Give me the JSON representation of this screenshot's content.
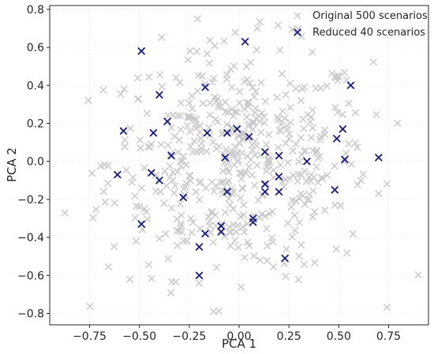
{
  "chart_data": {
    "type": "scatter",
    "title": "",
    "xlabel": "PCA 1",
    "ylabel": "PCA 2",
    "xlim": [
      -0.95,
      0.95
    ],
    "ylim": [
      -0.86,
      0.82
    ],
    "xticks": [
      -0.75,
      -0.5,
      -0.25,
      0.0,
      0.25,
      0.5,
      0.75
    ],
    "xtick_labels": [
      "−0.75",
      "−0.50",
      "−0.25",
      "0.00",
      "0.25",
      "0.50",
      "0.75"
    ],
    "yticks": [
      -0.8,
      -0.6,
      -0.4,
      -0.2,
      0.0,
      0.2,
      0.4,
      0.6,
      0.8
    ],
    "ytick_labels": [
      "−0.8",
      "−0.6",
      "−0.4",
      "−0.2",
      "0.0",
      "0.2",
      "0.4",
      "0.6",
      "0.8"
    ],
    "grid": true,
    "legend_position": "top-right",
    "series": [
      {
        "name": "Original 500 scenarios",
        "color": "#c8c8c8",
        "marker": "x",
        "points": []
      },
      {
        "name": "Reduced 40 scenarios",
        "color": "#1a1a7a",
        "marker": "x",
        "points": [
          [
            -0.49,
            0.58
          ],
          [
            0.03,
            0.63
          ],
          [
            -0.4,
            0.35
          ],
          [
            -0.17,
            0.39
          ],
          [
            0.56,
            0.4
          ],
          [
            -0.58,
            0.16
          ],
          [
            -0.43,
            0.15
          ],
          [
            -0.36,
            0.21
          ],
          [
            -0.16,
            0.15
          ],
          [
            -0.06,
            0.15
          ],
          [
            -0.01,
            0.17
          ],
          [
            0.05,
            0.13
          ],
          [
            -0.34,
            0.03
          ],
          [
            -0.07,
            0.02
          ],
          [
            0.13,
            0.05
          ],
          [
            0.2,
            0.03
          ],
          [
            0.34,
            0.0
          ],
          [
            0.49,
            0.12
          ],
          [
            0.52,
            0.17
          ],
          [
            0.53,
            0.01
          ],
          [
            0.7,
            0.02
          ],
          [
            -0.61,
            -0.07
          ],
          [
            -0.44,
            -0.06
          ],
          [
            -0.4,
            -0.1
          ],
          [
            -0.28,
            -0.19
          ],
          [
            -0.06,
            -0.16
          ],
          [
            0.13,
            -0.12
          ],
          [
            0.13,
            -0.16
          ],
          [
            0.2,
            -0.08
          ],
          [
            0.2,
            -0.16
          ],
          [
            0.48,
            -0.15
          ],
          [
            0.07,
            -0.3
          ],
          [
            0.07,
            -0.32
          ],
          [
            -0.49,
            -0.33
          ],
          [
            -0.09,
            -0.34
          ],
          [
            -0.09,
            -0.37
          ],
          [
            -0.17,
            -0.38
          ],
          [
            -0.2,
            -0.45
          ],
          [
            0.23,
            -0.51
          ],
          [
            -0.2,
            -0.6
          ]
        ]
      }
    ]
  }
}
